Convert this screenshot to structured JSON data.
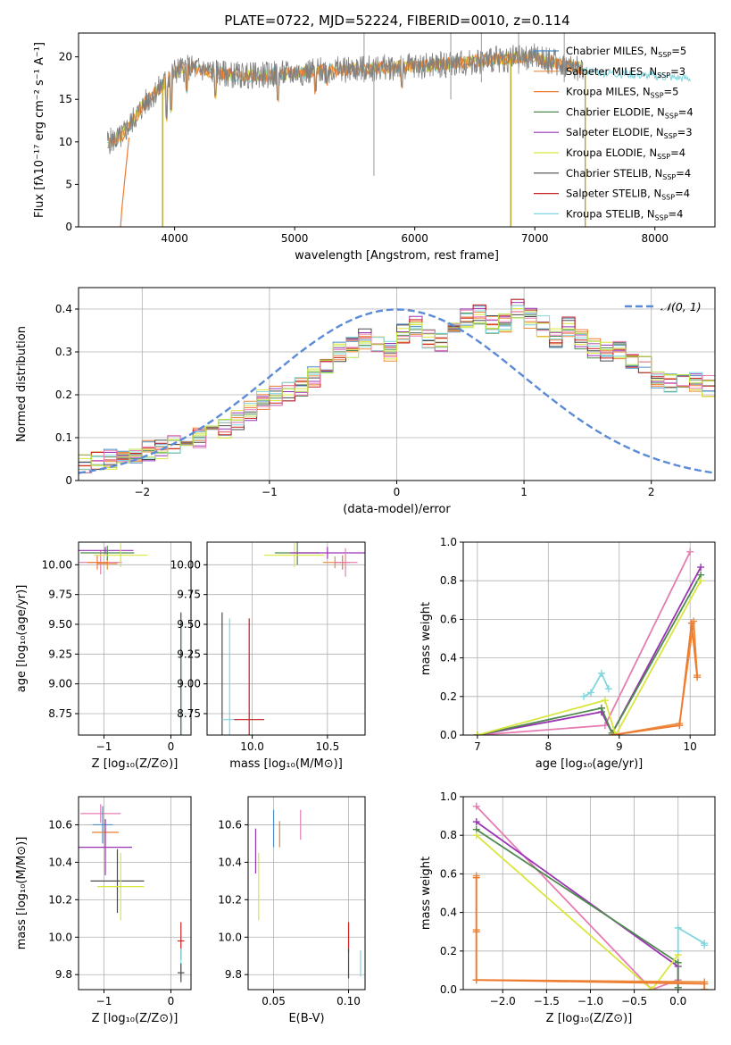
{
  "figure": {
    "title": "PLATE=0722, MJD=52224, FIBERID=0010, z=0.114"
  },
  "colors": {
    "Chabrier MILES": "#4c8cc2",
    "Salpeter MILES": "#ec8b3c",
    "Kroupa MILES": "#ee7a30",
    "Chabrier ELODIE": "#4e8a4e",
    "Salpeter ELODIE": "#9b33b5",
    "Kroupa ELODIE": "#d9e63c",
    "Chabrier STELIB": "#4a4a4a",
    "Salpeter STELIB": "#c62020",
    "Kroupa STELIB": "#7fd6df",
    "extra_pink": "#e67cb2",
    "extra_lime": "#b8e34a",
    "gaussian": "#5b8bd6",
    "data_gray": "#808080"
  },
  "chart_data": [
    {
      "id": "spectrum",
      "type": "line",
      "xlabel": "wavelength [Angstrom, rest frame]",
      "ylabel": "Flux [fλ10⁻¹⁷ erg cm⁻² s⁻¹ A⁻¹]",
      "xlim": [
        3200,
        8500
      ],
      "ylim": [
        0,
        22.8
      ],
      "xticks": [
        4000,
        5000,
        6000,
        7000,
        8000
      ],
      "yticks": [
        0,
        5,
        10,
        15,
        20
      ],
      "grid": false,
      "legend_position": "right",
      "legend": [
        {
          "name": "Chabrier MILES",
          "label": "Chabrier MILES, N",
          "sub": "SSP",
          "tail": "=5"
        },
        {
          "name": "Salpeter MILES",
          "label": "Salpeter MILES, N",
          "sub": "SSP",
          "tail": "=3"
        },
        {
          "name": "Kroupa MILES",
          "label": "Kroupa MILES, N",
          "sub": "SSP",
          "tail": "=5"
        },
        {
          "name": "Chabrier ELODIE",
          "label": "Chabrier ELODIE, N",
          "sub": "SSP",
          "tail": "=4"
        },
        {
          "name": "Salpeter ELODIE",
          "label": "Salpeter ELODIE, N",
          "sub": "SSP",
          "tail": "=3"
        },
        {
          "name": "Kroupa ELODIE",
          "label": "Kroupa ELODIE, N",
          "sub": "SSP",
          "tail": "=4"
        },
        {
          "name": "Chabrier STELIB",
          "label": "Chabrier STELIB, N",
          "sub": "SSP",
          "tail": "=4"
        },
        {
          "name": "Salpeter STELIB",
          "label": "Salpeter STELIB, N",
          "sub": "SSP",
          "tail": "=4"
        },
        {
          "name": "Kroupa STELIB",
          "label": "Kroupa STELIB, N",
          "sub": "SSP",
          "tail": "=4"
        }
      ],
      "continuum": {
        "x": [
          3440,
          3550,
          3650,
          3750,
          3850,
          3950,
          4000,
          4100,
          4200,
          4400,
          4600,
          4800,
          5000,
          5200,
          5400,
          5600,
          5800,
          6000,
          6200,
          6400,
          6600,
          6800,
          7000,
          7200,
          7400
        ],
        "y": [
          10.0,
          10.5,
          12.5,
          14.5,
          16.0,
          17.5,
          18.3,
          18.7,
          18.6,
          18.0,
          17.8,
          17.9,
          18.1,
          18.4,
          18.5,
          18.6,
          18.8,
          18.9,
          19.1,
          19.3,
          19.6,
          19.8,
          20.0,
          19.2,
          18.6
        ]
      },
      "model_extension": {
        "x": [
          7400,
          7500,
          7700,
          7900,
          8100,
          8300
        ],
        "y": [
          18.4,
          18.2,
          18.0,
          17.8,
          17.6,
          17.4
        ]
      },
      "absorption_lines": [
        {
          "x": 3934,
          "y": 12.8
        },
        {
          "x": 3969,
          "y": 13.8
        },
        {
          "x": 4102,
          "y": 16.0
        },
        {
          "x": 4340,
          "y": 15.5
        },
        {
          "x": 4861,
          "y": 15.0
        },
        {
          "x": 5175,
          "y": 16.0
        },
        {
          "x": 5270,
          "y": 17.0
        },
        {
          "x": 5892,
          "y": 16.5
        }
      ],
      "dropouts": [
        {
          "x": 3900,
          "y": 0
        },
        {
          "x": 6800,
          "y": 0
        },
        {
          "x": 7420,
          "y": 0
        }
      ],
      "emission_spikes": [
        {
          "x": 5578,
          "ytop": 22.8,
          "ybottom": 17.0
        },
        {
          "x": 5660,
          "ytop": 18.5,
          "ybottom": 6.0
        },
        {
          "x": 6300,
          "ytop": 22.8,
          "ybottom": 15.0
        },
        {
          "x": 6555,
          "ytop": 22.8,
          "ybottom": 17.0
        },
        {
          "x": 6865,
          "ytop": 22.8,
          "ybottom": 18.0
        },
        {
          "x": 7245,
          "ytop": 22.8,
          "ybottom": 17.0
        }
      ],
      "orange_start": {
        "x": [
          3550,
          3560,
          3620
        ],
        "y": [
          0,
          2,
          10.5
        ]
      }
    },
    {
      "id": "residuals",
      "type": "step-histogram",
      "xlabel": "(data-model)/error",
      "ylabel": "Normed distribution",
      "xlim": [
        -2.5,
        2.5
      ],
      "ylim": [
        0,
        0.45
      ],
      "xticks": [
        -2,
        -1,
        0,
        1,
        2
      ],
      "yticks": [
        0.0,
        0.1,
        0.2,
        0.3,
        0.4
      ],
      "grid": true,
      "legend_position": "top-right",
      "gaussian_label": "𝒩(0, 1)",
      "bin_width": 0.1,
      "bin_start": -2.5,
      "base_counts": [
        0.04,
        0.045,
        0.05,
        0.055,
        0.06,
        0.07,
        0.075,
        0.08,
        0.09,
        0.1,
        0.11,
        0.12,
        0.14,
        0.16,
        0.19,
        0.2,
        0.21,
        0.22,
        0.24,
        0.27,
        0.3,
        0.31,
        0.33,
        0.32,
        0.3,
        0.34,
        0.36,
        0.33,
        0.32,
        0.35,
        0.38,
        0.39,
        0.36,
        0.37,
        0.4,
        0.38,
        0.36,
        0.33,
        0.36,
        0.33,
        0.31,
        0.3,
        0.3,
        0.28,
        0.27,
        0.24,
        0.23,
        0.24,
        0.23,
        0.22,
        0.2,
        0.18,
        0.17,
        0.15,
        0.13,
        0.14,
        0.13,
        0.12,
        0.11,
        0.1,
        0.1,
        0.09,
        0.09,
        0.08,
        0.08,
        0.07,
        0.07,
        0.06,
        0.06,
        0.05,
        0.05,
        0.045,
        0.04,
        0.035,
        0.04,
        0.035,
        0.03,
        0.03,
        0.03,
        0.025
      ],
      "series": [
        {
          "name": "Chabrier MILES",
          "seed": 1
        },
        {
          "name": "Salpeter MILES",
          "seed": 2
        },
        {
          "name": "Kroupa MILES",
          "seed": 3
        },
        {
          "name": "Chabrier ELODIE",
          "seed": 4
        },
        {
          "name": "Salpeter ELODIE",
          "seed": 5
        },
        {
          "name": "Kroupa ELODIE",
          "seed": 6
        },
        {
          "name": "Chabrier STELIB",
          "seed": 7
        },
        {
          "name": "Salpeter STELIB",
          "seed": 8
        },
        {
          "name": "Kroupa STELIB",
          "seed": 9
        },
        {
          "name": "extra_pink",
          "seed": 10
        },
        {
          "name": "extra_lime",
          "seed": 11
        }
      ]
    },
    {
      "id": "age-vs-Z",
      "type": "scatter",
      "xlabel": "Z [log₁₀(Z/Z⊙)]",
      "ylabel": "age  [log₁₀(age/yr)]",
      "xlim": [
        -1.38,
        0.3
      ],
      "ylim": [
        8.57,
        10.19
      ],
      "xticks": [
        -1,
        0
      ],
      "xticklabels": [
        "−1",
        "0"
      ],
      "yticks": [
        8.75,
        9.0,
        9.25,
        9.5,
        9.75,
        10.0
      ],
      "yticklabels": [
        "8.75",
        "9.00",
        "9.25",
        "9.50",
        "9.75",
        "10.00"
      ],
      "grid": true,
      "points": [
        {
          "color": "extra_pink",
          "x": -1.05,
          "y": 10.02,
          "xerr": 0.32,
          "yerr": 0.1
        },
        {
          "color": "Salpeter MILES",
          "x": -0.95,
          "y": 10.01,
          "xerr": 0.15,
          "yerr": 0.05
        },
        {
          "color": "Kroupa MILES",
          "x": -1.1,
          "y": 10.02,
          "xerr": 0.15,
          "yerr": 0.06
        },
        {
          "color": "Salpeter ELODIE",
          "x": -0.98,
          "y": 10.12,
          "xerr": 0.42,
          "yerr": 0.03
        },
        {
          "color": "Chabrier ELODIE",
          "x": -0.95,
          "y": 10.1,
          "xerr": 0.4,
          "yerr": 0.06
        },
        {
          "color": "Kroupa ELODIE",
          "x": -0.75,
          "y": 10.08,
          "xerr": 0.4,
          "yerr": 0.1
        },
        {
          "color": "Chabrier STELIB",
          "x": 0.15,
          "y": 8.7,
          "xerr": 0.0,
          "yerr": 0.9
        },
        {
          "color": "Kroupa STELIB",
          "x": 0.16,
          "y": 8.7,
          "xerr": 0.0,
          "yerr": 0.85
        }
      ]
    },
    {
      "id": "age-vs-mass",
      "type": "scatter",
      "xlabel": "mass [log₁₀(M/M⊙)]",
      "ylabel": "",
      "xlim": [
        9.7,
        10.75
      ],
      "ylim": [
        8.57,
        10.19
      ],
      "xticks": [
        10.0,
        10.5
      ],
      "xticklabels": [
        "10.0",
        "10.5"
      ],
      "yticks": [
        8.75,
        9.0,
        9.25,
        9.5,
        9.75,
        10.0
      ],
      "yticklabels": [
        "8.75",
        "9.00",
        "9.25",
        "9.50",
        "9.75",
        "10.00"
      ],
      "grid": true,
      "points": [
        {
          "color": "Chabrier ELODIE",
          "x": 10.3,
          "y": 10.1,
          "xerr": 0.15,
          "yerr": 0.1
        },
        {
          "color": "Kroupa ELODIE",
          "x": 10.28,
          "y": 10.08,
          "xerr": 0.2,
          "yerr": 0.1
        },
        {
          "color": "Salpeter ELODIE",
          "x": 10.5,
          "y": 10.1,
          "xerr": 0.25,
          "yerr": 0.05
        },
        {
          "color": "Salpeter MILES",
          "x": 10.55,
          "y": 10.02,
          "xerr": 0.08,
          "yerr": 0.05
        },
        {
          "color": "Kroupa MILES",
          "x": 10.6,
          "y": 10.02,
          "xerr": 0.05,
          "yerr": 0.06
        },
        {
          "color": "extra_pink",
          "x": 10.62,
          "y": 10.02,
          "xerr": 0.08,
          "yerr": 0.12
        },
        {
          "color": "Chabrier STELIB",
          "x": 9.8,
          "y": 8.7,
          "xerr": 0.0,
          "yerr": 0.9
        },
        {
          "color": "Kroupa STELIB",
          "x": 9.85,
          "y": 8.7,
          "xerr": 0.05,
          "yerr": 0.85
        },
        {
          "color": "Salpeter STELIB",
          "x": 9.98,
          "y": 8.7,
          "xerr": 0.1,
          "yerr": 0.85
        }
      ]
    },
    {
      "id": "weight-vs-age",
      "type": "line",
      "xlabel": "age  [log₁₀(age/yr)]",
      "ylabel": "mass weight",
      "xlim": [
        6.8,
        10.35
      ],
      "ylim": [
        0,
        1.0
      ],
      "xticks": [
        7,
        8,
        9,
        10
      ],
      "yticks": [
        0.0,
        0.2,
        0.4,
        0.6,
        0.8,
        1.0
      ],
      "yticklabels": [
        "0.0",
        "0.2",
        "0.4",
        "0.6",
        "0.8",
        "1.0"
      ],
      "grid": true,
      "series": [
        {
          "color": "extra_pink",
          "x": [
            7.0,
            8.8,
            10.0
          ],
          "y": [
            0.0,
            0.05,
            0.95
          ]
        },
        {
          "color": "Salpeter ELODIE",
          "x": [
            7.0,
            8.75,
            8.9,
            10.15
          ],
          "y": [
            0.0,
            0.12,
            0.01,
            0.87
          ]
        },
        {
          "color": "Chabrier ELODIE",
          "x": [
            7.0,
            8.75,
            8.9,
            10.15
          ],
          "y": [
            0.0,
            0.14,
            0.01,
            0.83
          ]
        },
        {
          "color": "Kroupa ELODIE",
          "x": [
            7.0,
            8.8,
            8.95,
            10.15
          ],
          "y": [
            0.0,
            0.18,
            0.0,
            0.8
          ]
        },
        {
          "color": "Kroupa STELIB",
          "x": [
            8.5,
            8.6,
            8.75,
            8.85
          ],
          "y": [
            0.2,
            0.22,
            0.32,
            0.24
          ]
        },
        {
          "color": "Salpeter MILES",
          "x": [
            8.9,
            9.85,
            10.05,
            10.1
          ],
          "y": [
            0.0,
            0.06,
            0.59,
            0.31
          ]
        },
        {
          "color": "Kroupa MILES",
          "x": [
            8.9,
            9.85,
            10.02,
            10.1
          ],
          "y": [
            0.0,
            0.05,
            0.58,
            0.3
          ]
        }
      ]
    },
    {
      "id": "mass-vs-Z",
      "type": "scatter",
      "xlabel": "Z [log₁₀(Z/Z⊙)]",
      "ylabel": "mass [log₁₀(M/M⊙)]",
      "xlim": [
        -1.38,
        0.3
      ],
      "ylim": [
        9.72,
        10.75
      ],
      "xticks": [
        -1,
        0
      ],
      "xticklabels": [
        "−1",
        "0"
      ],
      "yticks": [
        9.8,
        10.0,
        10.2,
        10.4,
        10.6
      ],
      "yticklabels": [
        "9.8",
        "10.0",
        "10.2",
        "10.4",
        "10.6"
      ],
      "grid": true,
      "points": [
        {
          "color": "extra_pink",
          "x": -1.05,
          "y": 10.66,
          "xerr": 0.3,
          "yerr": 0.05
        },
        {
          "color": "Chabrier MILES",
          "x": -1.02,
          "y": 10.6,
          "xerr": 0.15,
          "yerr": 0.1
        },
        {
          "color": "Kroupa MILES",
          "x": -0.98,
          "y": 10.56,
          "xerr": 0.2,
          "yerr": 0.07
        },
        {
          "color": "Salpeter ELODIE",
          "x": -0.98,
          "y": 10.48,
          "xerr": 0.4,
          "yerr": 0.15
        },
        {
          "color": "Chabrier STELIB",
          "x": -0.8,
          "y": 10.3,
          "xerr": 0.4,
          "yerr": 0.17
        },
        {
          "color": "Kroupa ELODIE",
          "x": -0.75,
          "y": 10.27,
          "xerr": 0.35,
          "yerr": 0.18
        },
        {
          "color": "Salpeter STELIB",
          "x": 0.15,
          "y": 9.98,
          "xerr": 0.05,
          "yerr": 0.1
        },
        {
          "color": "Kroupa STELIB",
          "x": 0.15,
          "y": 9.86,
          "xerr": 0.0,
          "yerr": 0.08
        },
        {
          "color": "Chabrier STELIB",
          "x": 0.15,
          "y": 9.81,
          "xerr": 0.05,
          "yerr": 0.05
        }
      ]
    },
    {
      "id": "mass-vs-EBV",
      "type": "scatter",
      "xlabel": "E(B-V)",
      "ylabel": "",
      "xlim": [
        0.033,
        0.111
      ],
      "ylim": [
        9.72,
        10.75
      ],
      "xticks": [
        0.05,
        0.1
      ],
      "xticklabels": [
        "0.05",
        "0.10"
      ],
      "yticks": [
        9.8,
        10.0,
        10.2,
        10.4,
        10.6
      ],
      "yticklabels": [
        "9.8",
        "10.0",
        "10.2",
        "10.4",
        "10.6"
      ],
      "grid": true,
      "points": [
        {
          "color": "Salpeter ELODIE",
          "x": 0.038,
          "y": 10.46,
          "xerr": 0.0,
          "yerr": 0.12
        },
        {
          "color": "Kroupa ELODIE",
          "x": 0.04,
          "y": 10.27,
          "xerr": 0.0,
          "yerr": 0.18
        },
        {
          "color": "Chabrier MILES",
          "x": 0.05,
          "y": 10.58,
          "xerr": 0.0,
          "yerr": 0.1
        },
        {
          "color": "Kroupa MILES",
          "x": 0.054,
          "y": 10.55,
          "xerr": 0.0,
          "yerr": 0.07
        },
        {
          "color": "extra_pink",
          "x": 0.068,
          "y": 10.6,
          "xerr": 0.0,
          "yerr": 0.08
        },
        {
          "color": "Salpeter STELIB",
          "x": 0.1,
          "y": 10.0,
          "xerr": 0.0,
          "yerr": 0.08
        },
        {
          "color": "Chabrier STELIB",
          "x": 0.1,
          "y": 9.86,
          "xerr": 0.0,
          "yerr": 0.08
        },
        {
          "color": "Kroupa STELIB",
          "x": 0.108,
          "y": 9.86,
          "xerr": 0.0,
          "yerr": 0.07
        }
      ]
    },
    {
      "id": "weight-vs-Z",
      "type": "line",
      "xlabel": "Z [log₁₀(Z/Z⊙)]",
      "ylabel": "mass weight",
      "xlim": [
        -2.45,
        0.42
      ],
      "ylim": [
        0,
        1.0
      ],
      "xticks": [
        -2.0,
        -1.5,
        -1.0,
        -0.5,
        0.0
      ],
      "xticklabels": [
        "−2.0",
        "−1.5",
        "−1.0",
        "−0.5",
        "0.0"
      ],
      "yticks": [
        0.0,
        0.2,
        0.4,
        0.6,
        0.8,
        1.0
      ],
      "yticklabels": [
        "0.0",
        "0.2",
        "0.4",
        "0.6",
        "0.8",
        "1.0"
      ],
      "grid": true,
      "series": [
        {
          "color": "extra_pink",
          "x": [
            -2.3,
            -0.3,
            0.0
          ],
          "y": [
            0.95,
            0.0,
            0.05
          ]
        },
        {
          "color": "Salpeter ELODIE",
          "x": [
            -2.3,
            0.0,
            0.0
          ],
          "y": [
            0.87,
            0.12,
            0.01
          ]
        },
        {
          "color": "Chabrier ELODIE",
          "x": [
            -2.3,
            0.0,
            0.0
          ],
          "y": [
            0.83,
            0.14,
            0.01
          ]
        },
        {
          "color": "Kroupa ELODIE",
          "x": [
            -2.3,
            -0.3,
            0.0
          ],
          "y": [
            0.8,
            0.0,
            0.18
          ]
        },
        {
          "color": "Kroupa STELIB",
          "x": [
            0.0,
            0.0,
            0.3,
            0.3
          ],
          "y": [
            0.2,
            0.32,
            0.24,
            0.23
          ]
        },
        {
          "color": "Salpeter MILES",
          "x": [
            -2.3,
            -2.3,
            -2.3,
            0.3,
            0.3
          ],
          "y": [
            0.59,
            0.31,
            0.05,
            0.04,
            0.0
          ]
        },
        {
          "color": "Kroupa MILES",
          "x": [
            -2.3,
            -2.3,
            -2.3,
            0.3,
            0.3
          ],
          "y": [
            0.58,
            0.3,
            0.05,
            0.03,
            0.0
          ]
        }
      ]
    }
  ]
}
